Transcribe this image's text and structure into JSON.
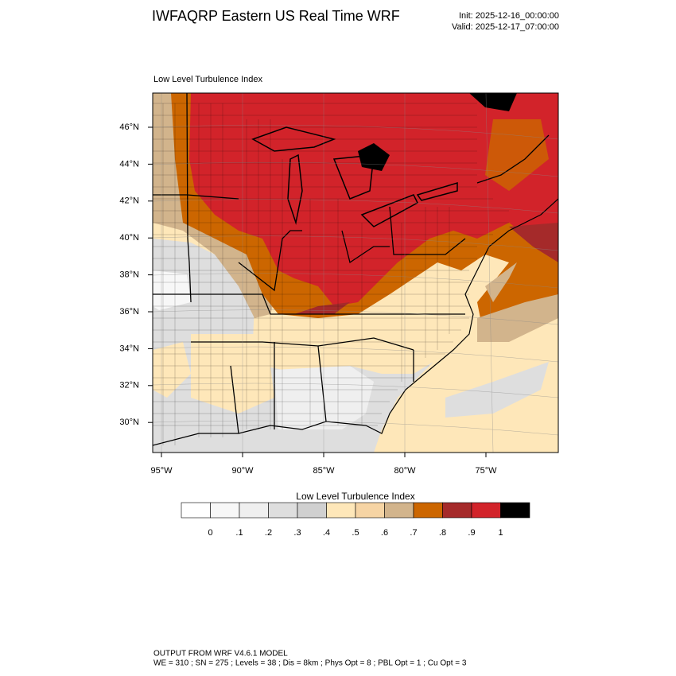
{
  "header": {
    "title": "IWFAQRP Eastern US Real Time WRF",
    "init": "Init: 2025-12-16_00:00:00",
    "valid": "Valid: 2025-12-17_07:00:00"
  },
  "map": {
    "title": "Low Level Turbulence Index",
    "lat_labels": [
      "46°N",
      "44°N",
      "42°N",
      "40°N",
      "38°N",
      "36°N",
      "34°N",
      "32°N",
      "30°N"
    ],
    "lon_labels": [
      "95°W",
      "90°W",
      "85°W",
      "80°W",
      "75°W"
    ]
  },
  "colorbar": {
    "title": "Low Level Turbulence Index",
    "colors": [
      "#ffffff",
      "#f7f7f7",
      "#efefef",
      "#dedede",
      "#d0d0d0",
      "#fee7b9",
      "#f6d4a4",
      "#d2b48c",
      "#cc6600",
      "#a52a2a",
      "#d2232a",
      "#000000"
    ],
    "labels": [
      "0",
      ".1",
      ".2",
      ".3",
      ".4",
      ".5",
      ".6",
      ".7",
      ".8",
      ".9",
      "1"
    ]
  },
  "footer": {
    "line1": "OUTPUT FROM WRF V4.6.1 MODEL",
    "line2": "WE = 310 ; SN = 275 ; Levels = 38 ; Dis = 8km ; Phys Opt = 8 ; PBL Opt = 1 ; Cu Opt = 3"
  }
}
